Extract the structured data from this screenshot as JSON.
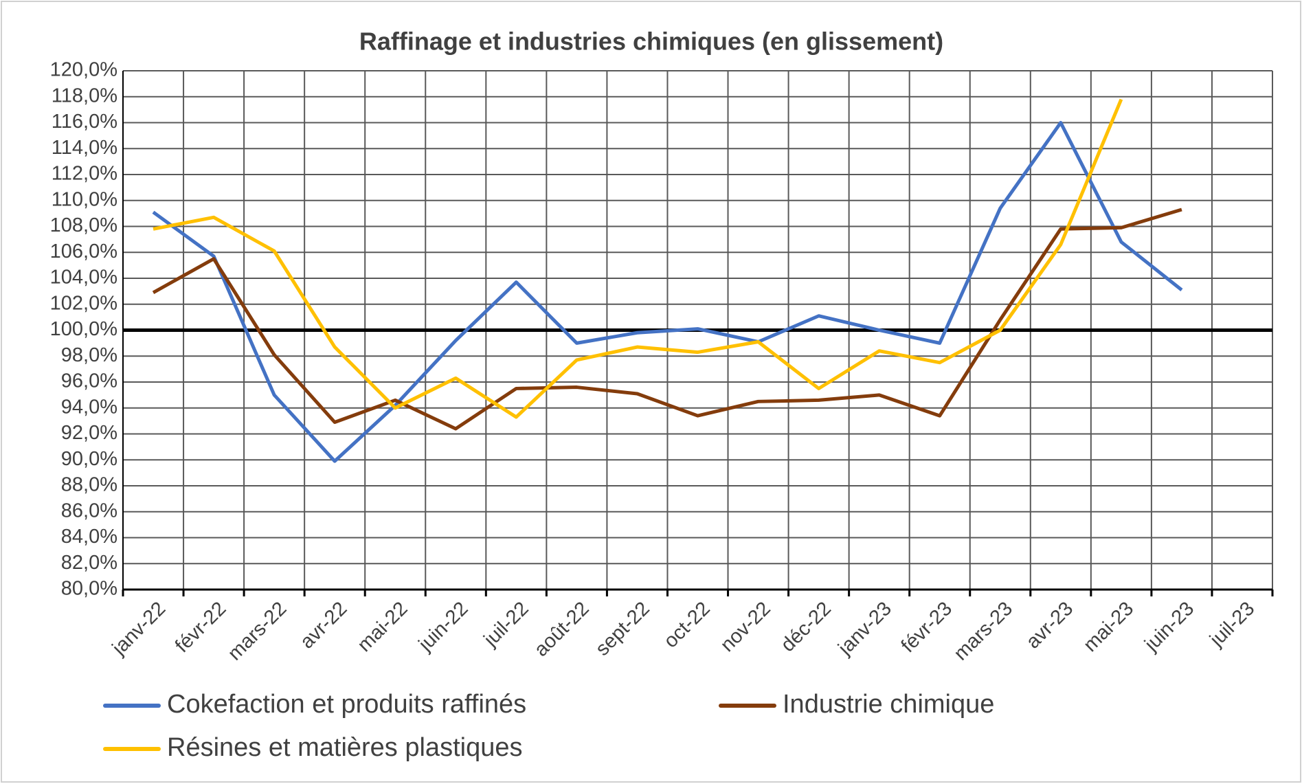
{
  "chart_data": {
    "type": "line",
    "title": "Raffinage et industries chimiques (en glissement)",
    "categories": [
      "janv-22",
      "févr-22",
      "mars-22",
      "avr-22",
      "mai-22",
      "juin-22",
      "juil-22",
      "août-22",
      "sept-22",
      "oct-22",
      "nov-22",
      "déc-22",
      "janv-23",
      "févr-23",
      "mars-23",
      "avr-23",
      "mai-23",
      "juin-23",
      "juil-23"
    ],
    "series": [
      {
        "name": "Cokefaction et produits raffinés",
        "color": "#4472c4",
        "values": [
          109.1,
          105.7,
          95.0,
          89.9,
          94.2,
          99.2,
          103.7,
          99.0,
          99.8,
          100.1,
          99.1,
          101.1,
          100.0,
          99.0,
          109.4,
          116.0,
          106.8,
          103.1,
          null
        ]
      },
      {
        "name": "Industrie chimique",
        "color": "#843c0c",
        "values": [
          102.9,
          105.5,
          98.1,
          92.9,
          94.6,
          92.4,
          95.5,
          95.6,
          95.1,
          93.4,
          94.5,
          94.6,
          95.0,
          93.4,
          100.8,
          107.8,
          107.9,
          109.3,
          null
        ]
      },
      {
        "name": "Résines et matières plastiques",
        "color": "#ffc000",
        "values": [
          107.8,
          108.7,
          106.1,
          98.7,
          94.0,
          96.3,
          93.3,
          97.7,
          98.7,
          98.3,
          99.1,
          95.5,
          98.4,
          97.5,
          100.0,
          106.6,
          117.8,
          null,
          null
        ]
      }
    ],
    "ylim": [
      80,
      120
    ],
    "yticks": [
      {
        "value": 80,
        "label": "80,0%"
      },
      {
        "value": 82,
        "label": "82,0%"
      },
      {
        "value": 84,
        "label": "84,0%"
      },
      {
        "value": 86,
        "label": "86,0%"
      },
      {
        "value": 88,
        "label": "88,0%"
      },
      {
        "value": 90,
        "label": "90,0%"
      },
      {
        "value": 92,
        "label": "92,0%"
      },
      {
        "value": 94,
        "label": "94,0%"
      },
      {
        "value": 96,
        "label": "96,0%"
      },
      {
        "value": 98,
        "label": "98,0%"
      },
      {
        "value": 100,
        "label": "100,0%"
      },
      {
        "value": 102,
        "label": "102,0%"
      },
      {
        "value": 104,
        "label": "104,0%"
      },
      {
        "value": 106,
        "label": "106,0%"
      },
      {
        "value": 108,
        "label": "108,0%"
      },
      {
        "value": 110,
        "label": "110,0%"
      },
      {
        "value": 112,
        "label": "112,0%"
      },
      {
        "value": 114,
        "label": "114,0%"
      },
      {
        "value": 116,
        "label": "116,0%"
      },
      {
        "value": 118,
        "label": "118,0%"
      },
      {
        "value": 120,
        "label": "120,0%"
      }
    ],
    "reference_line": 100,
    "grid": true,
    "legend": "bottom"
  }
}
